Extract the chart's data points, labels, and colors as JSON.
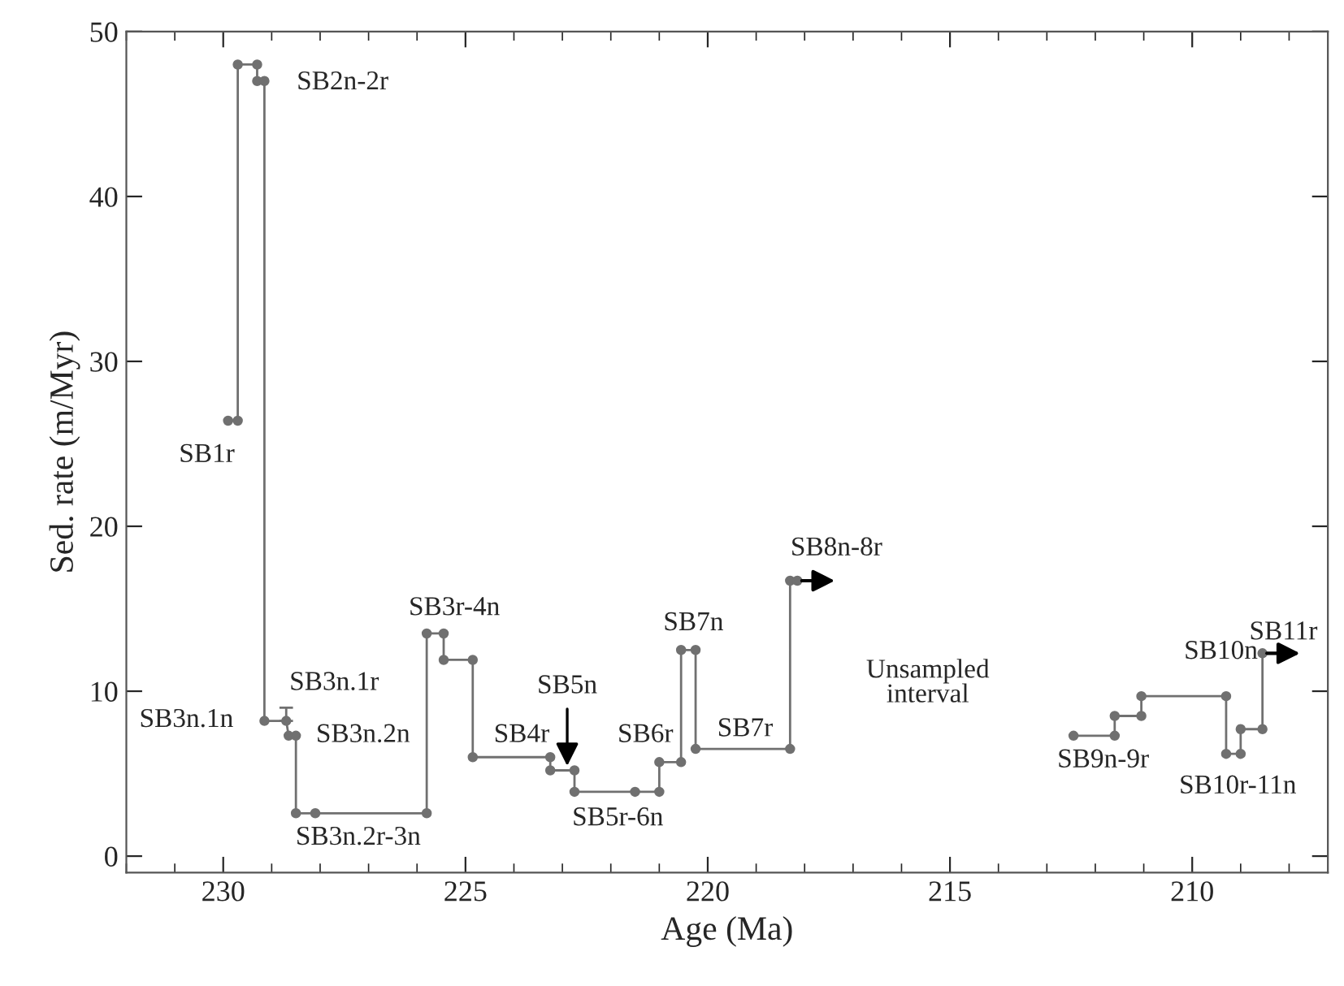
{
  "chart_data": {
    "type": "line",
    "xlabel": "Age (Ma)",
    "ylabel": "Sed. rate (m/Myr)",
    "xlim": [
      232,
      207.2
    ],
    "xticks": [
      230,
      225,
      220,
      215,
      210
    ],
    "ylim": [
      -1,
      50
    ],
    "yticks": [
      0,
      10,
      20,
      30,
      40,
      50
    ],
    "marker": "circle",
    "line_style": "solid",
    "grid": false,
    "legend": false,
    "series": [
      {
        "color": "#707070",
        "x": [
          229.9,
          229.7,
          229.7,
          229.3,
          229.3,
          229.15,
          229.15,
          228.7,
          228.65,
          228.5,
          228.5,
          228.1,
          225.8,
          225.8,
          225.45,
          225.45,
          224.85,
          224.85,
          223.25,
          223.25,
          222.75,
          222.75,
          221.5,
          221.0,
          221.0,
          220.55,
          220.55,
          220.25,
          220.25,
          218.3,
          218.3,
          218.15,
          215.3,
          212.45,
          211.6,
          211.6,
          211.05,
          211.05,
          209.3,
          209.3,
          209.0,
          209.0,
          208.55,
          208.55
        ],
        "values": [
          26.4,
          26.4,
          48,
          48,
          47,
          47,
          8.2,
          8.2,
          7.3,
          7.3,
          2.6,
          2.6,
          2.6,
          13.5,
          13.5,
          11.9,
          11.9,
          6.0,
          6.0,
          5.2,
          5.2,
          3.9,
          3.9,
          3.9,
          5.7,
          5.7,
          12.5,
          12.5,
          6.5,
          6.5,
          16.7,
          16.7,
          null,
          7.3,
          7.3,
          8.5,
          8.5,
          9.7,
          9.7,
          6.2,
          6.2,
          7.7,
          7.7,
          12.3
        ],
        "errors": [
          null,
          null,
          null,
          null,
          null,
          null,
          null,
          [
            8.2,
            9.0
          ],
          null,
          null,
          null,
          null,
          null,
          null,
          null,
          null,
          null,
          null,
          null,
          null,
          null,
          null,
          null,
          null,
          null,
          null,
          null,
          null,
          null,
          null,
          null,
          null,
          null,
          null,
          null,
          null,
          null,
          null,
          null,
          null,
          null,
          null,
          null,
          null
        ]
      }
    ],
    "annotations": [
      "SB1r",
      "SB2n-2r",
      "SB3n.1n",
      "SB3n.1r",
      "SB3n.2n",
      "SB3n.2r-3n",
      "SB3r-4n",
      "SB4r",
      {
        "text": "SB5n",
        "x": 222.9,
        "y": 5.2
      },
      "SB5r-6n",
      "SB6r",
      "SB7n",
      "SB7r",
      "SB8n-8r",
      "Unsampled\ninterval",
      "SB9n-9r",
      "SB10n",
      "SB10r-11n",
      "SB11r"
    ]
  }
}
